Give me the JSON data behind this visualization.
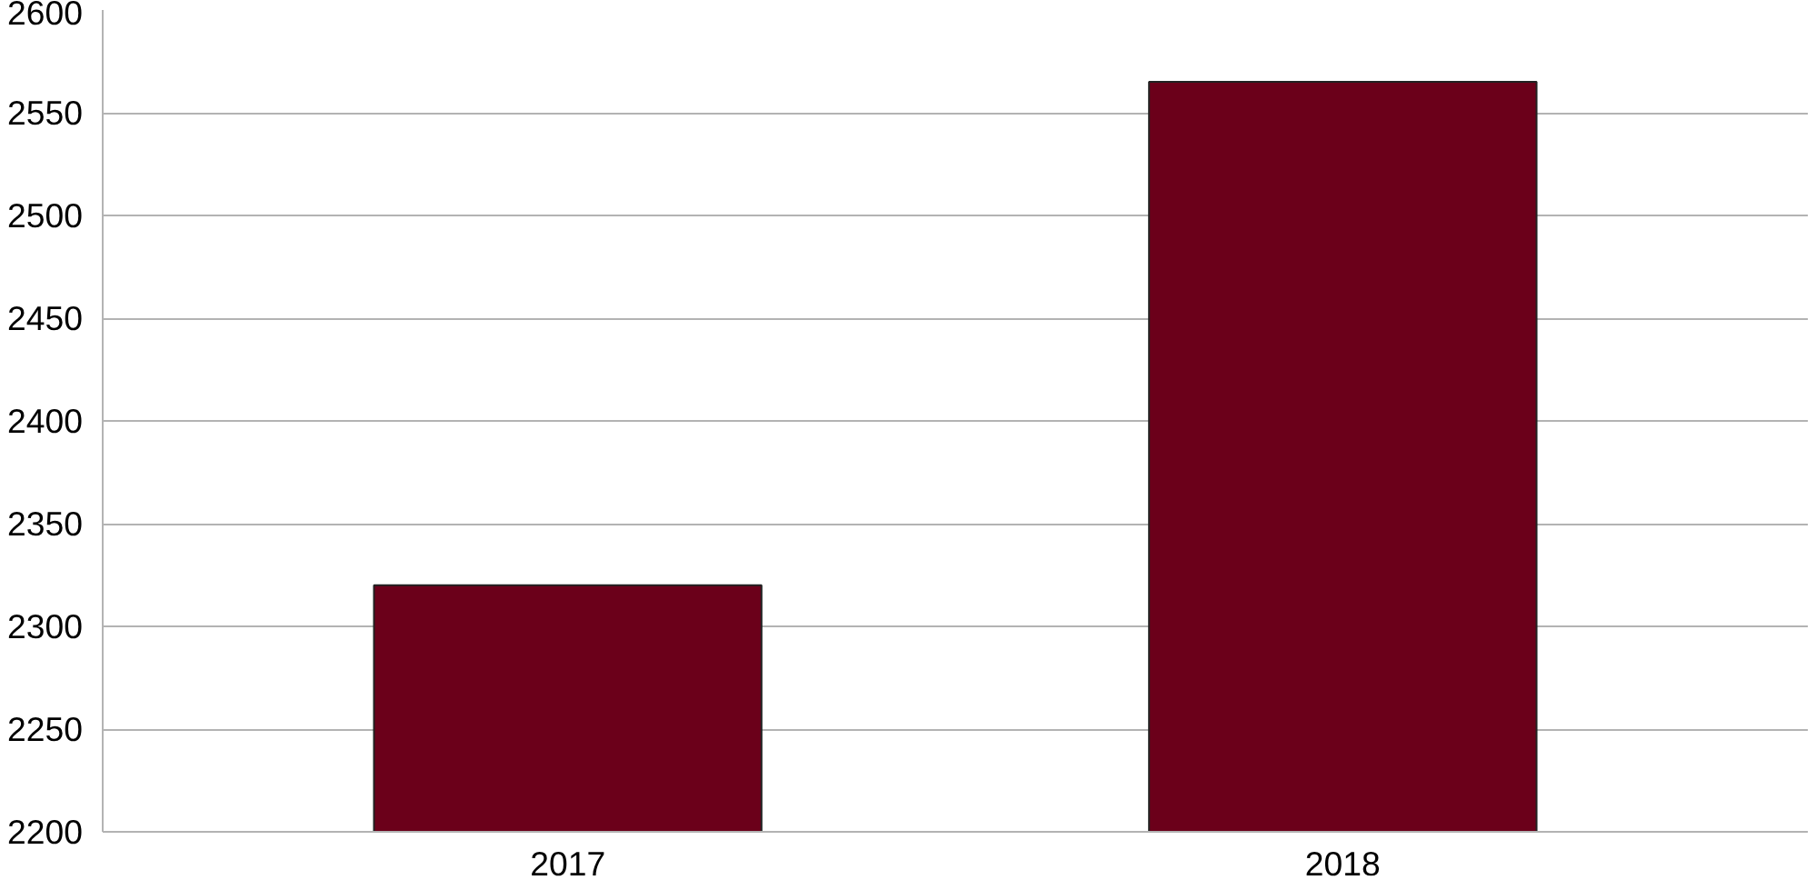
{
  "chart_data": {
    "type": "bar",
    "categories": [
      "2017",
      "2018"
    ],
    "values": [
      2320,
      2565
    ],
    "color": "#6b001a",
    "ylim": [
      2200,
      2600
    ],
    "yticks": [
      2200,
      2250,
      2300,
      2350,
      2400,
      2450,
      2500,
      2550,
      2600
    ],
    "grid": "y"
  }
}
